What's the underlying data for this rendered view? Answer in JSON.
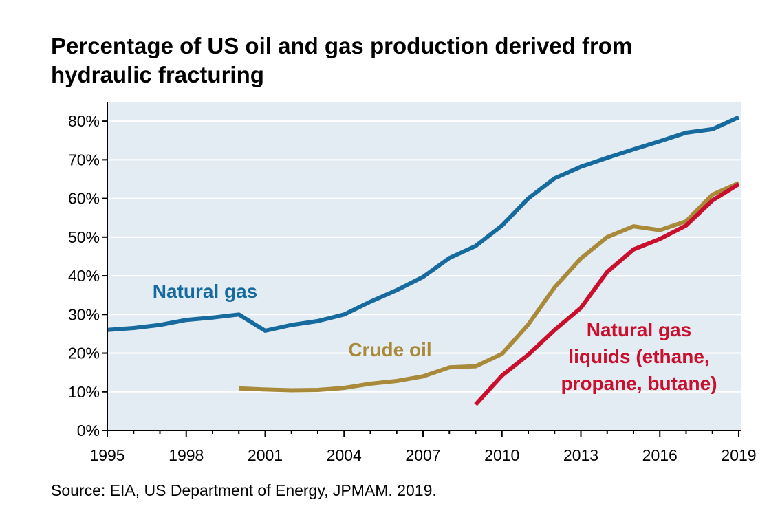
{
  "chart_data": {
    "type": "line",
    "title": "Percentage of US oil and gas production derived from hydraulic fracturing",
    "xlabel": "",
    "ylabel": "",
    "xlim": [
      1995,
      2019
    ],
    "ylim": [
      0,
      85
    ],
    "x_ticks": [
      1995,
      1998,
      2001,
      2004,
      2007,
      2010,
      2013,
      2016,
      2019
    ],
    "x_tick_labels": [
      "1995",
      "1998",
      "2001",
      "2004",
      "2007",
      "2010",
      "2013",
      "2016",
      "2019"
    ],
    "y_ticks": [
      0,
      10,
      20,
      30,
      40,
      50,
      60,
      70,
      80
    ],
    "y_tick_labels": [
      "0%",
      "10%",
      "20%",
      "30%",
      "40%",
      "50%",
      "60%",
      "70%",
      "80%"
    ],
    "grid": "horizontal",
    "background_color": "#e4ecf3",
    "series": [
      {
        "name": "Natural gas",
        "color": "#166a9d",
        "label_lines": [
          "Natural gas"
        ],
        "x": [
          1995,
          1996,
          1997,
          1998,
          1999,
          2000,
          2001,
          2002,
          2003,
          2004,
          2005,
          2006,
          2007,
          2008,
          2009,
          2010,
          2011,
          2012,
          2013,
          2014,
          2015,
          2016,
          2017,
          2018,
          2019
        ],
        "values": [
          26,
          26.5,
          27.3,
          28.6,
          29.2,
          30,
          25.8,
          27.3,
          28.3,
          30,
          33.3,
          36.3,
          39.7,
          44.6,
          47.7,
          53,
          60,
          65.2,
          68.2,
          70.5,
          72.7,
          74.8,
          77,
          77.9,
          81
        ]
      },
      {
        "name": "Crude oil",
        "color": "#a88a3a",
        "label_lines": [
          "Crude oil"
        ],
        "x": [
          2000,
          2001,
          2002,
          2003,
          2004,
          2005,
          2006,
          2007,
          2008,
          2009,
          2010,
          2011,
          2012,
          2013,
          2014,
          2015,
          2016,
          2017,
          2018,
          2019
        ],
        "values": [
          10.9,
          10.6,
          10.4,
          10.5,
          11,
          12.1,
          12.8,
          14,
          16.3,
          16.6,
          19.8,
          27.4,
          37,
          44.5,
          50,
          52.8,
          51.8,
          54.1,
          61,
          64
        ]
      },
      {
        "name": "Natural gas liquids (ethane, propane, butane)",
        "color": "#c8102e",
        "label_lines": [
          "Natural gas",
          "liquids (ethane,",
          "propane, butane)"
        ],
        "x": [
          2009,
          2010,
          2011,
          2012,
          2013,
          2014,
          2015,
          2016,
          2017,
          2018,
          2019
        ],
        "values": [
          6.7,
          14.2,
          19.6,
          26,
          31.7,
          41,
          46.8,
          49.5,
          53,
          59.5,
          63.7
        ]
      }
    ]
  },
  "source": "Source: EIA, US Department of Energy, JPMAM. 2019."
}
